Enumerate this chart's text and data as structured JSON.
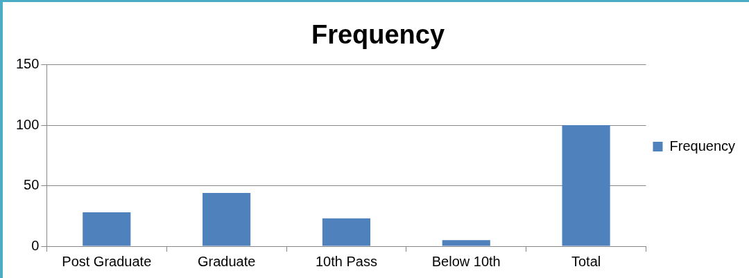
{
  "chart_data": {
    "type": "bar",
    "title": "Frequency",
    "categories": [
      "Post Graduate",
      "Graduate",
      "10th Pass",
      "Below 10th",
      "Total"
    ],
    "series": [
      {
        "name": "Frequency",
        "color": "#4f81bd",
        "values": [
          28,
          44,
          23,
          5,
          100
        ]
      }
    ],
    "ylim": [
      0,
      150
    ],
    "yticks": [
      0,
      50,
      100,
      150
    ],
    "grid": "y",
    "legend": "right"
  }
}
